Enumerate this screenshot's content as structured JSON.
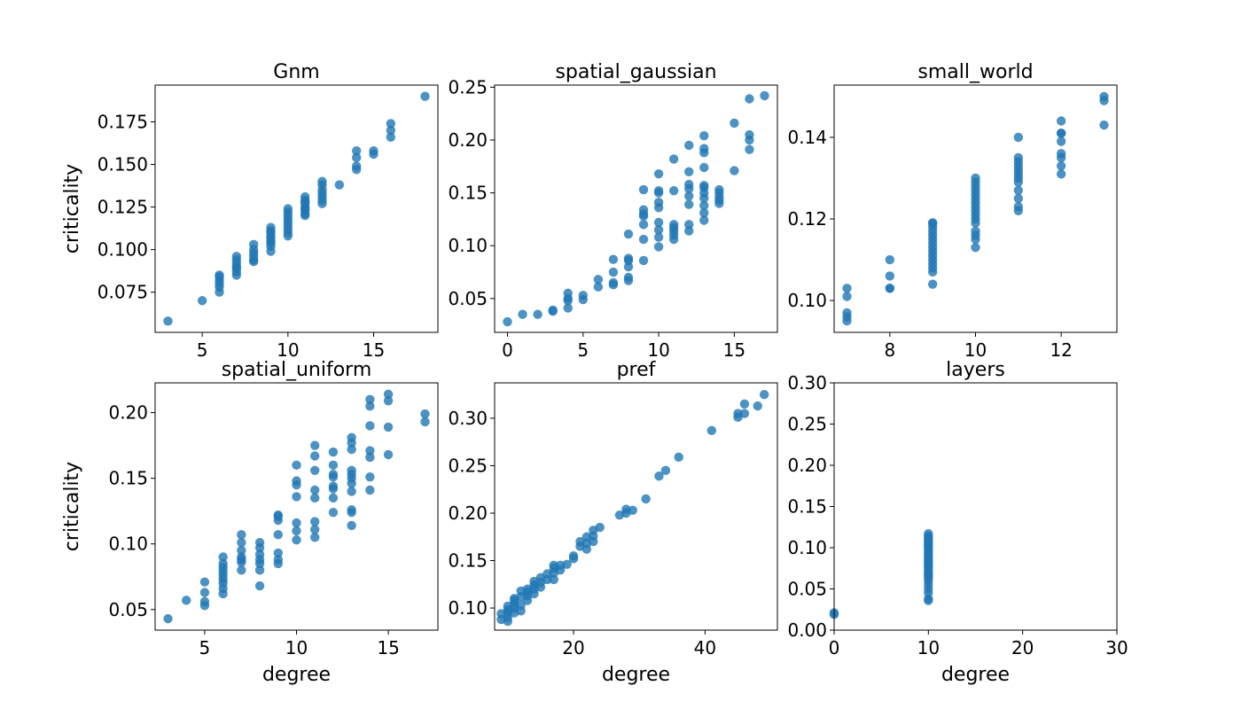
{
  "figure": {
    "point_color": "#1f77b4"
  },
  "chart_data": [
    {
      "type": "scatter",
      "title": "Gnm",
      "xlabel": "",
      "ylabel": "criticality",
      "xlim": [
        2.25,
        18.75
      ],
      "ylim": [
        0.0514,
        0.1966
      ],
      "xticks": [
        5,
        10,
        15
      ],
      "xtick_labels": [
        "5",
        "10",
        "15"
      ],
      "yticks": [
        0.075,
        0.1,
        0.125,
        0.15,
        0.175
      ],
      "ytick_labels": [
        "0.075",
        "0.100",
        "0.125",
        "0.150",
        "0.175"
      ],
      "grid": false,
      "x": [
        3,
        5,
        6,
        6,
        6,
        6,
        6,
        6,
        7,
        7,
        7,
        7,
        7,
        7,
        7,
        8,
        8,
        8,
        8,
        8,
        8,
        9,
        9,
        9,
        9,
        9,
        9,
        9,
        9,
        9,
        10,
        10,
        10,
        10,
        10,
        10,
        10,
        10,
        10,
        11,
        11,
        11,
        11,
        11,
        11,
        11,
        11,
        11,
        12,
        12,
        12,
        12,
        12,
        12,
        12,
        13,
        14,
        14,
        14,
        14,
        15,
        15,
        16,
        16,
        16,
        18
      ],
      "y": [
        0.058,
        0.07,
        0.075,
        0.078,
        0.08,
        0.082,
        0.084,
        0.085,
        0.085,
        0.087,
        0.089,
        0.09,
        0.092,
        0.094,
        0.096,
        0.093,
        0.094,
        0.096,
        0.098,
        0.1,
        0.103,
        0.099,
        0.102,
        0.104,
        0.105,
        0.107,
        0.108,
        0.11,
        0.111,
        0.113,
        0.108,
        0.11,
        0.112,
        0.114,
        0.116,
        0.118,
        0.12,
        0.122,
        0.124,
        0.12,
        0.121,
        0.123,
        0.124,
        0.125,
        0.127,
        0.128,
        0.129,
        0.131,
        0.127,
        0.129,
        0.131,
        0.133,
        0.135,
        0.138,
        0.14,
        0.138,
        0.147,
        0.149,
        0.154,
        0.158,
        0.156,
        0.158,
        0.166,
        0.17,
        0.174,
        0.19
      ]
    },
    {
      "type": "scatter",
      "title": "spatial_gaussian",
      "xlabel": "",
      "ylabel": "",
      "xlim": [
        -0.85,
        17.85
      ],
      "ylim": [
        0.018,
        0.252
      ],
      "xticks": [
        0,
        5,
        10,
        15
      ],
      "xtick_labels": [
        "0",
        "5",
        "10",
        "15"
      ],
      "yticks": [
        0.05,
        0.1,
        0.15,
        0.2,
        0.25
      ],
      "ytick_labels": [
        "0.05",
        "0.10",
        "0.15",
        "0.20",
        "0.25"
      ],
      "grid": false,
      "x": [
        0,
        1,
        2,
        3,
        3,
        4,
        4,
        4,
        4,
        5,
        5,
        6,
        6,
        7,
        7,
        7,
        7,
        8,
        8,
        8,
        8,
        8,
        8,
        9,
        9,
        9,
        9,
        9,
        9,
        9,
        10,
        10,
        10,
        10,
        10,
        10,
        10,
        10,
        10,
        11,
        11,
        11,
        11,
        11,
        11,
        11,
        12,
        12,
        12,
        12,
        12,
        12,
        12,
        12,
        13,
        13,
        13,
        13,
        13,
        13,
        13,
        13,
        13,
        13,
        13,
        14,
        14,
        14,
        14,
        14,
        15,
        15,
        16,
        16,
        16,
        16,
        17
      ],
      "y": [
        0.028,
        0.035,
        0.035,
        0.038,
        0.039,
        0.041,
        0.048,
        0.05,
        0.055,
        0.049,
        0.053,
        0.061,
        0.068,
        0.063,
        0.065,
        0.075,
        0.087,
        0.067,
        0.07,
        0.08,
        0.086,
        0.088,
        0.111,
        0.086,
        0.106,
        0.12,
        0.128,
        0.13,
        0.134,
        0.153,
        0.099,
        0.108,
        0.115,
        0.122,
        0.136,
        0.141,
        0.15,
        0.152,
        0.168,
        0.106,
        0.11,
        0.114,
        0.117,
        0.12,
        0.152,
        0.182,
        0.114,
        0.12,
        0.139,
        0.147,
        0.154,
        0.158,
        0.17,
        0.195,
        0.124,
        0.131,
        0.138,
        0.145,
        0.15,
        0.155,
        0.157,
        0.174,
        0.188,
        0.192,
        0.204,
        0.14,
        0.143,
        0.146,
        0.15,
        0.153,
        0.171,
        0.216,
        0.191,
        0.2,
        0.205,
        0.239,
        0.242
      ]
    },
    {
      "type": "scatter",
      "title": "small_world",
      "xlabel": "",
      "ylabel": "",
      "xlim": [
        6.7,
        13.3
      ],
      "ylim": [
        0.0922,
        0.1528
      ],
      "xticks": [
        8,
        10,
        12
      ],
      "xtick_labels": [
        "8",
        "10",
        "12"
      ],
      "yticks": [
        0.1,
        0.12,
        0.14
      ],
      "ytick_labels": [
        "0.10",
        "0.12",
        "0.14"
      ],
      "grid": false,
      "x": [
        7,
        7,
        7,
        7,
        7,
        8,
        8,
        8,
        8,
        9,
        9,
        9,
        9,
        9,
        9,
        9,
        9,
        9,
        9,
        9,
        9,
        9,
        9,
        9,
        10,
        10,
        10,
        10,
        10,
        10,
        10,
        10,
        10,
        10,
        10,
        10,
        10,
        10,
        10,
        10,
        11,
        11,
        11,
        11,
        11,
        11,
        11,
        11,
        11,
        11,
        11,
        11,
        12,
        12,
        12,
        12,
        12,
        12,
        12,
        12,
        13,
        13,
        13
      ],
      "y": [
        0.095,
        0.096,
        0.097,
        0.101,
        0.103,
        0.103,
        0.103,
        0.106,
        0.11,
        0.104,
        0.107,
        0.108,
        0.109,
        0.11,
        0.111,
        0.112,
        0.113,
        0.114,
        0.115,
        0.116,
        0.117,
        0.118,
        0.119,
        0.119,
        0.113,
        0.115,
        0.116,
        0.117,
        0.119,
        0.12,
        0.121,
        0.122,
        0.123,
        0.124,
        0.125,
        0.126,
        0.127,
        0.128,
        0.129,
        0.13,
        0.122,
        0.123,
        0.125,
        0.127,
        0.129,
        0.13,
        0.131,
        0.132,
        0.133,
        0.134,
        0.135,
        0.14,
        0.131,
        0.133,
        0.135,
        0.136,
        0.139,
        0.141,
        0.141,
        0.144,
        0.143,
        0.149,
        0.15
      ]
    },
    {
      "type": "scatter",
      "title": "spatial_uniform",
      "xlabel": "degree",
      "ylabel": "criticality",
      "xlim": [
        2.3,
        17.7
      ],
      "ylim": [
        0.0343,
        0.2227
      ],
      "xticks": [
        5,
        10,
        15
      ],
      "xtick_labels": [
        "5",
        "10",
        "15"
      ],
      "yticks": [
        0.05,
        0.1,
        0.15,
        0.2
      ],
      "ytick_labels": [
        "0.05",
        "0.10",
        "0.15",
        "0.20"
      ],
      "grid": false,
      "x": [
        3,
        4,
        5,
        5,
        5,
        5,
        6,
        6,
        6,
        6,
        6,
        6,
        6,
        6,
        6,
        7,
        7,
        7,
        7,
        7,
        7,
        7,
        8,
        8,
        8,
        8,
        8,
        8,
        8,
        9,
        9,
        9,
        9,
        9,
        9,
        9,
        10,
        10,
        10,
        10,
        10,
        10,
        10,
        11,
        11,
        11,
        11,
        11,
        11,
        11,
        11,
        12,
        12,
        12,
        12,
        12,
        12,
        12,
        12,
        13,
        13,
        13,
        13,
        13,
        13,
        13,
        13,
        13,
        13,
        13,
        14,
        14,
        14,
        14,
        14,
        14,
        14,
        15,
        15,
        15,
        15,
        17,
        17
      ],
      "y": [
        0.043,
        0.057,
        0.053,
        0.056,
        0.063,
        0.071,
        0.062,
        0.066,
        0.07,
        0.073,
        0.076,
        0.079,
        0.082,
        0.085,
        0.09,
        0.08,
        0.086,
        0.088,
        0.09,
        0.095,
        0.101,
        0.107,
        0.068,
        0.08,
        0.085,
        0.088,
        0.092,
        0.097,
        0.101,
        0.085,
        0.088,
        0.093,
        0.107,
        0.118,
        0.121,
        0.122,
        0.103,
        0.11,
        0.116,
        0.136,
        0.145,
        0.148,
        0.16,
        0.105,
        0.111,
        0.117,
        0.135,
        0.141,
        0.156,
        0.167,
        0.175,
        0.124,
        0.135,
        0.142,
        0.144,
        0.151,
        0.153,
        0.16,
        0.17,
        0.114,
        0.124,
        0.126,
        0.14,
        0.146,
        0.15,
        0.153,
        0.156,
        0.172,
        0.177,
        0.181,
        0.141,
        0.151,
        0.166,
        0.171,
        0.19,
        0.205,
        0.21,
        0.168,
        0.189,
        0.209,
        0.214,
        0.193,
        0.199
      ]
    },
    {
      "type": "scatter",
      "title": "pref",
      "xlabel": "degree",
      "ylabel": "",
      "xlim": [
        8.0,
        51.0
      ],
      "ylim": [
        0.0767,
        0.3373
      ],
      "xticks": [
        20,
        40
      ],
      "xtick_labels": [
        "20",
        "40"
      ],
      "yticks": [
        0.1,
        0.15,
        0.2,
        0.25,
        0.3
      ],
      "ytick_labels": [
        "0.10",
        "0.15",
        "0.20",
        "0.25",
        "0.30"
      ],
      "grid": false,
      "x": [
        9,
        9,
        10,
        10,
        10,
        10,
        10,
        11,
        11,
        11,
        11,
        11,
        12,
        12,
        12,
        12,
        13,
        13,
        13,
        13,
        14,
        14,
        14,
        14,
        15,
        15,
        15,
        16,
        16,
        17,
        17,
        17,
        17,
        18,
        18,
        19,
        20,
        20,
        21,
        21,
        22,
        22,
        22,
        23,
        23,
        23,
        24,
        27,
        28,
        28,
        29,
        31,
        33,
        34,
        36,
        41,
        45,
        45,
        46,
        46,
        48,
        49
      ],
      "y": [
        0.088,
        0.094,
        0.086,
        0.09,
        0.095,
        0.098,
        0.102,
        0.095,
        0.1,
        0.104,
        0.108,
        0.11,
        0.097,
        0.103,
        0.112,
        0.118,
        0.108,
        0.113,
        0.117,
        0.12,
        0.115,
        0.12,
        0.124,
        0.128,
        0.122,
        0.127,
        0.132,
        0.13,
        0.136,
        0.13,
        0.137,
        0.142,
        0.145,
        0.14,
        0.145,
        0.146,
        0.152,
        0.155,
        0.165,
        0.17,
        0.162,
        0.168,
        0.175,
        0.17,
        0.176,
        0.182,
        0.185,
        0.198,
        0.2,
        0.204,
        0.203,
        0.215,
        0.239,
        0.245,
        0.259,
        0.287,
        0.301,
        0.305,
        0.305,
        0.315,
        0.313,
        0.325
      ]
    },
    {
      "type": "scatter",
      "title": "layers",
      "xlabel": "degree",
      "ylabel": "",
      "xlim": [
        0,
        30
      ],
      "ylim": [
        0.0,
        0.3
      ],
      "xticks": [
        0,
        10,
        20,
        30
      ],
      "xtick_labels": [
        "0",
        "10",
        "20",
        "30"
      ],
      "yticks": [
        0.0,
        0.05,
        0.1,
        0.15,
        0.2,
        0.25,
        0.3
      ],
      "ytick_labels": [
        "0.00",
        "0.05",
        "0.10",
        "0.15",
        "0.20",
        "0.25",
        "0.30"
      ],
      "grid": false,
      "x": [
        0,
        0,
        10,
        10,
        10,
        10,
        10,
        10,
        10,
        10,
        10,
        10,
        10,
        10,
        10,
        10,
        10,
        10,
        10,
        10,
        10,
        10,
        10,
        10,
        10,
        10,
        10,
        10,
        10,
        10,
        10,
        10
      ],
      "y": [
        0.019,
        0.021,
        0.036,
        0.038,
        0.045,
        0.05,
        0.055,
        0.06,
        0.063,
        0.066,
        0.068,
        0.07,
        0.073,
        0.076,
        0.078,
        0.08,
        0.083,
        0.085,
        0.088,
        0.09,
        0.093,
        0.095,
        0.098,
        0.1,
        0.102,
        0.104,
        0.106,
        0.108,
        0.11,
        0.112,
        0.114,
        0.117
      ]
    }
  ]
}
